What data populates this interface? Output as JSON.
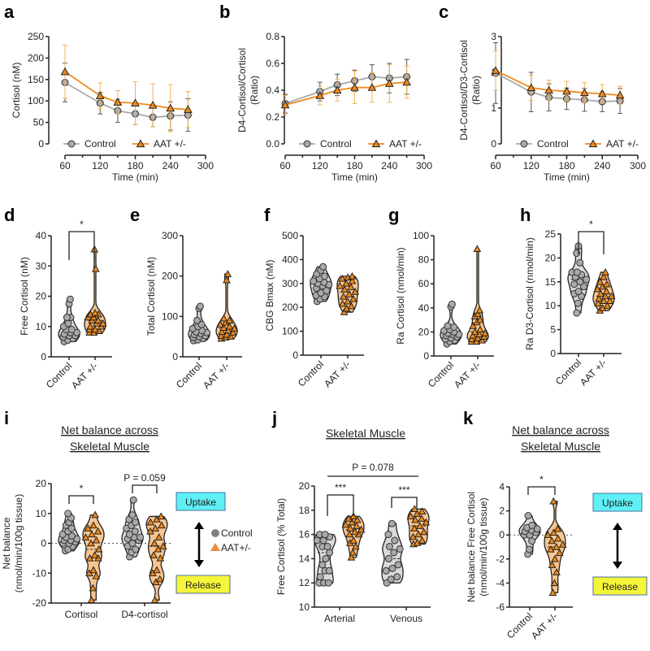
{
  "colors": {
    "control": "#a9a9a9",
    "control_dark": "#7f7f7f",
    "aat": "#f08a1c",
    "aat_fill": "#f6c590",
    "uptake": "#5ef0f5",
    "release": "#f5f53a"
  },
  "chart_data": [
    {
      "id": "a",
      "type": "line",
      "panel_label": "a",
      "xlabel": "Time (min)",
      "ylabel": "Cortisol (nM)",
      "x": [
        60,
        120,
        150,
        180,
        210,
        240,
        270
      ],
      "xlim": [
        60,
        300
      ],
      "xticks": [
        60,
        120,
        180,
        240,
        300
      ],
      "ylim": [
        0,
        250
      ],
      "yticks": [
        0,
        50,
        100,
        150,
        200,
        250
      ],
      "series": [
        {
          "name": "Control",
          "values": [
            143,
            95,
            77,
            70,
            62,
            65,
            67
          ],
          "errors": [
            45,
            25,
            27,
            25,
            22,
            33,
            38
          ]
        },
        {
          "name": "AAT +/-",
          "values": [
            168,
            112,
            97,
            95,
            90,
            83,
            80
          ],
          "errors": [
            62,
            30,
            27,
            50,
            50,
            55,
            42
          ]
        }
      ]
    },
    {
      "id": "b",
      "type": "line",
      "panel_label": "b",
      "xlabel": "Time (min)",
      "ylabel": "D4-Cortisol/Cortisol (Ratio)",
      "ylabel_lines": [
        "D4-Cortisol/Cortisol",
        "(Ratio)"
      ],
      "x": [
        60,
        120,
        150,
        180,
        210,
        240,
        270
      ],
      "xlim": [
        60,
        300
      ],
      "xticks": [
        60,
        120,
        180,
        240,
        300
      ],
      "ylim": [
        0,
        0.8
      ],
      "yticks": [
        "0.0",
        "0.2",
        "0.4",
        "0.6",
        "0.8"
      ],
      "series": [
        {
          "name": "Control",
          "values": [
            0.3,
            0.39,
            0.44,
            0.47,
            0.5,
            0.49,
            0.5
          ],
          "errors": [
            0.07,
            0.07,
            0.08,
            0.08,
            0.09,
            0.11,
            0.13
          ]
        },
        {
          "name": "AAT +/-",
          "values": [
            0.29,
            0.36,
            0.4,
            0.42,
            0.42,
            0.45,
            0.46
          ],
          "errors": [
            0.07,
            0.07,
            0.08,
            0.12,
            0.11,
            0.14,
            0.12
          ]
        }
      ]
    },
    {
      "id": "c",
      "type": "line",
      "panel_label": "c",
      "xlabel": "Time (min)",
      "ylabel": "D4-Cortisol/D3-Cortisol (Ratio)",
      "ylabel_lines": [
        "D4-Cortisol/D3-Cortisol",
        "(Ratio)"
      ],
      "x": [
        60,
        120,
        150,
        180,
        210,
        240,
        270
      ],
      "xlim": [
        60,
        300
      ],
      "xticks": [
        60,
        120,
        180,
        240,
        300
      ],
      "ylim": [
        0,
        3
      ],
      "yticks": [
        0,
        1,
        2,
        3
      ],
      "series": [
        {
          "name": "Control",
          "values": [
            1.98,
            1.45,
            1.3,
            1.26,
            1.23,
            1.18,
            1.2
          ],
          "errors": [
            0.85,
            0.55,
            0.38,
            0.3,
            0.32,
            0.28,
            0.35
          ]
        },
        {
          "name": "AAT +/-",
          "values": [
            2.05,
            1.57,
            1.5,
            1.47,
            1.43,
            1.4,
            1.36
          ],
          "errors": [
            0.55,
            0.35,
            0.28,
            0.28,
            0.28,
            0.26,
            0.25
          ]
        }
      ]
    },
    {
      "id": "d",
      "type": "violin",
      "panel_label": "d",
      "ylabel": "Free Cortisol (nM)",
      "ylim": [
        0,
        40
      ],
      "yticks": [
        0,
        10,
        20,
        30,
        40
      ],
      "significance": "*",
      "categories": [
        "Control",
        "AAT +/-"
      ],
      "groups": [
        [
          5,
          5.5,
          6,
          6.5,
          7,
          7,
          7.5,
          8,
          8,
          9,
          9,
          10,
          11,
          13,
          13,
          17.5,
          19
        ],
        [
          8,
          8,
          8.5,
          9,
          9,
          10,
          10,
          11,
          11,
          12,
          12,
          13,
          13,
          14,
          14,
          14.5,
          29,
          35.5
        ]
      ]
    },
    {
      "id": "e",
      "type": "violin",
      "panel_label": "e",
      "ylabel": "Total Cortisol (nM)",
      "ylim": [
        0,
        300
      ],
      "yticks": [
        0,
        100,
        200,
        300
      ],
      "categories": [
        "Control",
        "AAT +/-"
      ],
      "groups": [
        [
          40,
          42,
          45,
          48,
          50,
          52,
          55,
          58,
          60,
          62,
          65,
          70,
          75,
          80,
          90,
          120,
          125
        ],
        [
          45,
          48,
          50,
          52,
          55,
          60,
          62,
          65,
          70,
          72,
          75,
          80,
          85,
          90,
          95,
          190,
          205
        ]
      ]
    },
    {
      "id": "f",
      "type": "violin",
      "panel_label": "f",
      "ylabel": "CBG Bmax (nM)",
      "ylim": [
        0,
        500
      ],
      "yticks": [
        0,
        100,
        200,
        300,
        400,
        500
      ],
      "categories": [
        "Control",
        "AAT +/-"
      ],
      "groups": [
        [
          225,
          235,
          245,
          250,
          260,
          270,
          280,
          290,
          295,
          300,
          305,
          310,
          320,
          330,
          340,
          355,
          370
        ],
        [
          180,
          195,
          205,
          215,
          225,
          235,
          245,
          255,
          265,
          275,
          285,
          290,
          300,
          310,
          320,
          325,
          330
        ]
      ]
    },
    {
      "id": "g",
      "type": "violin",
      "panel_label": "g",
      "ylabel": "Ra Cortisol (nmol/min)",
      "ylim": [
        0,
        100
      ],
      "yticks": [
        0,
        20,
        40,
        60,
        80,
        100
      ],
      "categories": [
        "Control",
        "AAT +/-"
      ],
      "groups": [
        [
          10,
          12,
          13,
          14,
          15,
          16,
          17,
          18,
          18,
          19,
          20,
          21,
          22,
          24,
          25,
          41,
          43
        ],
        [
          12,
          12,
          13,
          14,
          15,
          16,
          17,
          18,
          19,
          20,
          22,
          25,
          28,
          30,
          33,
          35,
          38,
          89
        ]
      ]
    },
    {
      "id": "h",
      "type": "violin",
      "panel_label": "h",
      "ylabel": "Ra D3-Cortisol (nmol/min)",
      "ylim": [
        0,
        25
      ],
      "yticks": [
        0,
        5,
        10,
        15,
        20,
        25
      ],
      "significance": "*",
      "categories": [
        "Control",
        "AAT +/-"
      ],
      "groups": [
        [
          8.5,
          10.5,
          12,
          12.5,
          13,
          14,
          14.5,
          15,
          15.5,
          16,
          16.5,
          17,
          17,
          19,
          21,
          22.5
        ],
        [
          9,
          9.5,
          10,
          10.5,
          11,
          11,
          11.5,
          12,
          12,
          12.5,
          13,
          13.5,
          14,
          14.5,
          15,
          16,
          17
        ]
      ]
    },
    {
      "id": "i",
      "type": "violin",
      "panel_label": "i",
      "title": [
        "Net balance across",
        "Skeletal Muscle"
      ],
      "ylabel_lines": [
        "Net balance",
        "(nmol/min/100g tissue)"
      ],
      "ylim": [
        -20,
        20
      ],
      "yticks": [
        -20,
        -10,
        0,
        10,
        20
      ],
      "categories": [
        "Cortisol",
        "D4-cortisol"
      ],
      "legend": [
        "Control",
        "AAT+/-"
      ],
      "significance": [
        "*",
        "P = 0.059"
      ],
      "uptake_label": "Uptake",
      "release_label": "Release",
      "groups": [
        [
          -2.5,
          -2,
          -1,
          0,
          0,
          0.5,
          1,
          1,
          1.5,
          2,
          2.5,
          3,
          4,
          5,
          6,
          7,
          8.5,
          10
        ],
        [
          -19,
          -15,
          -11,
          -10,
          -9,
          -5,
          -5,
          -4,
          -2,
          0,
          1,
          2,
          3,
          4,
          5,
          6,
          9.5
        ],
        [
          -4.5,
          -3,
          -2,
          -1,
          0,
          1,
          1.5,
          2,
          2,
          3,
          4,
          5,
          6,
          7,
          8,
          9.5,
          14.5
        ],
        [
          -19,
          -13,
          -12,
          -10,
          -9,
          -5,
          -4,
          -2,
          -1,
          0,
          2,
          4,
          5,
          6,
          7,
          8,
          9
        ]
      ]
    },
    {
      "id": "j",
      "type": "violin",
      "panel_label": "j",
      "title": [
        "Skeletal Muscle"
      ],
      "ylabel": "Free Cortisol (% Total)",
      "ylim": [
        10,
        20
      ],
      "yticks": [
        10,
        12,
        14,
        16,
        18,
        20
      ],
      "categories": [
        "Arterial",
        "Venous"
      ],
      "significance": [
        "***",
        "***",
        "P = 0.078"
      ],
      "groups": [
        [
          12,
          12,
          12,
          12.5,
          13,
          13,
          13.5,
          14,
          14.5,
          15,
          15,
          15.5,
          15.5,
          15.8,
          16,
          16
        ],
        [
          14.1,
          14.5,
          15,
          15.3,
          15.5,
          16,
          16,
          16.2,
          16.4,
          16.5,
          16.7,
          16.8,
          17,
          17.2,
          17.3,
          17.5
        ],
        [
          12,
          12.3,
          12.5,
          13,
          13.2,
          13.5,
          14,
          14.5,
          14.8,
          15,
          15.5,
          16,
          16.9
        ],
        [
          15.2,
          15.3,
          15.5,
          15.8,
          16,
          16.2,
          16.5,
          16.7,
          17,
          17.2,
          17.3,
          17.5,
          17.7,
          17.9,
          18.1
        ]
      ]
    },
    {
      "id": "k",
      "type": "violin",
      "panel_label": "k",
      "title": [
        "Net balance across",
        "Skeletal Muscle"
      ],
      "ylabel_lines": [
        "Net balance Free Cortisol",
        "(nmol/min/100g tissue)"
      ],
      "ylim": [
        -6,
        4
      ],
      "yticks": [
        -6,
        -4,
        -2,
        0,
        2,
        4
      ],
      "categories": [
        "Control",
        "AAT +/-"
      ],
      "significance": "*",
      "uptake_label": "Uptake",
      "release_label": "Release",
      "groups": [
        [
          -1.6,
          -1.2,
          -0.5,
          0,
          0,
          0.2,
          0.3,
          0.4,
          0.5,
          0.6,
          0.8,
          1.6
        ],
        [
          -4.8,
          -4,
          -3.1,
          -2.5,
          -2,
          -1.5,
          -1.2,
          -1,
          -0.8,
          -0.5,
          -0.3,
          0,
          0.2,
          0.5,
          2.8
        ]
      ]
    }
  ]
}
